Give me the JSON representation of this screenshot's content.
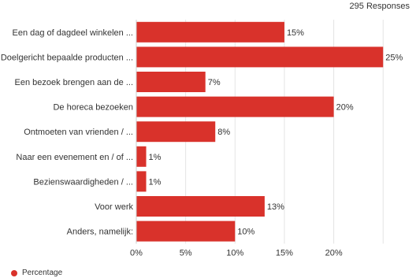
{
  "responses_label": "295 Responses",
  "chart_data": {
    "type": "bar",
    "orientation": "horizontal",
    "title": "",
    "xlabel": "",
    "ylabel": "",
    "categories": [
      "Een dag of dagdeel winkelen ...",
      "Doelgericht bepaalde producten ...",
      "Een bezoek brengen aan de ...",
      "De horeca bezoeken",
      "Ontmoeten van vrienden / ...",
      "Naar een evenement en / of ...",
      "Bezienswaardigheden / ...",
      "Voor werk",
      "Anders, namelijk:"
    ],
    "series": [
      {
        "name": "Percentage",
        "values": [
          15,
          25,
          7,
          20,
          8,
          1,
          1,
          13,
          10
        ],
        "data_labels": [
          "15%",
          "25%",
          "7%",
          "20%",
          "8%",
          "1%",
          "1%",
          "13%",
          "10%"
        ]
      }
    ],
    "x_ticks": [
      "0%",
      "5%",
      "10%",
      "15%",
      "20%"
    ],
    "xlim": [
      0,
      25
    ],
    "grid": true,
    "legend_position": "bottom-left",
    "bar_color": "#d9322b"
  }
}
